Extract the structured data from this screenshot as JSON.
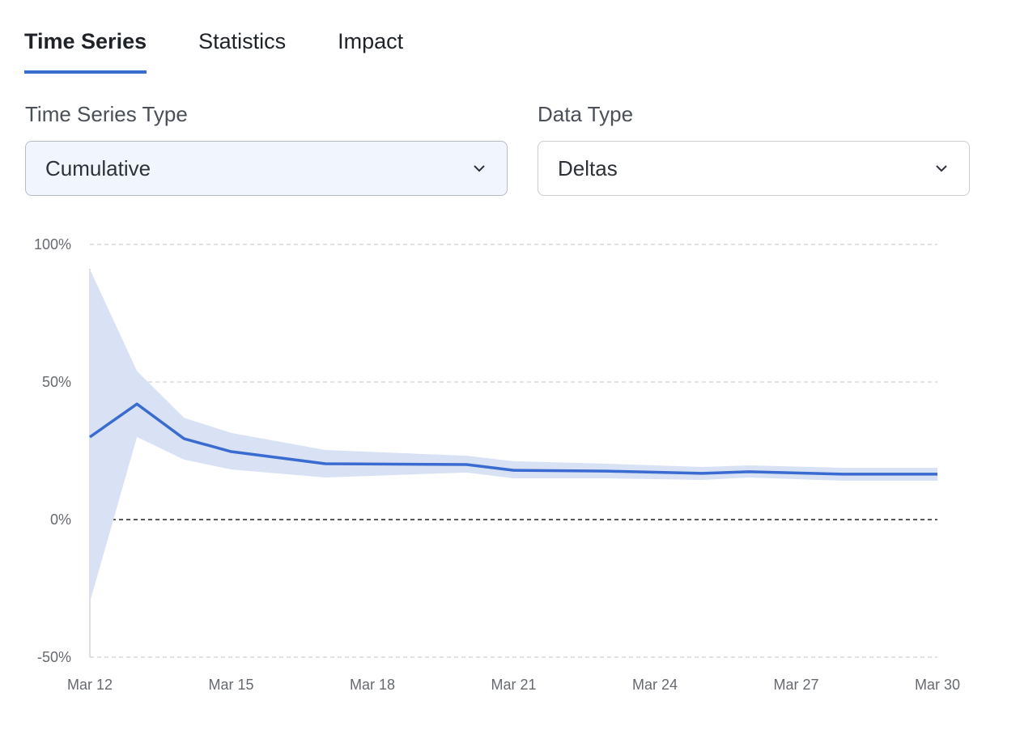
{
  "tabs": [
    {
      "label": "Time Series"
    },
    {
      "label": "Statistics"
    },
    {
      "label": "Impact"
    }
  ],
  "active_tab": "Time Series",
  "controls": {
    "series_type": {
      "label": "Time Series Type",
      "value": "Cumulative"
    },
    "data_type": {
      "label": "Data Type",
      "value": "Deltas"
    }
  },
  "colors": {
    "accent": "#3a6bd0",
    "band": "#d9e2f5",
    "selected_bg": "#f1f5fd"
  },
  "chart_data": {
    "type": "line",
    "x": [
      "Mar 12",
      "Mar 13",
      "Mar 14",
      "Mar 15",
      "Mar 17",
      "Mar 20",
      "Mar 21",
      "Mar 23",
      "Mar 25",
      "Mar 26",
      "Mar 28",
      "Mar 30"
    ],
    "x_days": [
      12,
      13,
      14,
      15,
      17,
      20,
      21,
      23,
      25,
      26,
      28,
      30
    ],
    "series": [
      {
        "values": [
          30,
          42,
          29.4,
          24.7,
          20.3,
          20,
          17.9,
          17.6,
          16.8,
          17.4,
          16.5,
          16.5
        ]
      }
    ],
    "band_upper": [
      91,
      54,
      37,
      31.5,
      25.3,
      23.2,
      21.2,
      20.3,
      19.1,
      19.7,
      18.8,
      18.8
    ],
    "band_lower": [
      -30,
      30,
      21.8,
      18.2,
      15.3,
      17.1,
      15,
      15,
      14.4,
      15.3,
      14.1,
      14.1
    ],
    "ylim": [
      -50,
      100
    ],
    "yticks": [
      "100%",
      "50%",
      "0%",
      "-50%"
    ],
    "ytick_values": [
      100,
      50,
      0,
      -50
    ],
    "xticks": [
      "Mar 12",
      "Mar 15",
      "Mar 18",
      "Mar 21",
      "Mar 24",
      "Mar 27",
      "Mar 30"
    ],
    "xtick_days": [
      12,
      15,
      18,
      21,
      24,
      27,
      30
    ],
    "grid": true,
    "zero_line": true
  }
}
